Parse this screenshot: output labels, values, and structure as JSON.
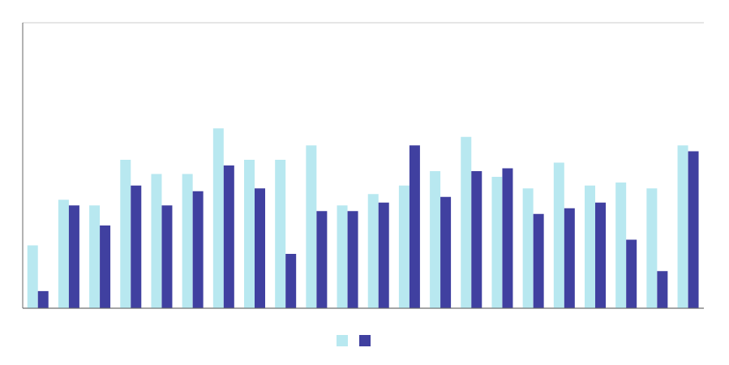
{
  "chart_data": {
    "type": "bar",
    "categories": [
      null,
      null,
      null,
      null,
      null,
      null,
      null,
      null,
      null,
      null,
      null,
      null,
      null,
      null,
      null,
      null,
      null,
      null,
      null,
      null,
      null,
      null
    ],
    "series": [
      {
        "color": "#b8e8f0",
        "values": [
          0.22,
          0.38,
          0.36,
          0.52,
          0.47,
          0.47,
          0.63,
          0.52,
          0.52,
          0.57,
          0.36,
          0.4,
          0.43,
          0.48,
          0.6,
          0.46,
          0.42,
          0.51,
          0.43,
          0.44,
          0.42,
          0.57
        ]
      },
      {
        "color": "#4040a0",
        "values": [
          0.06,
          0.36,
          0.29,
          0.43,
          0.36,
          0.41,
          0.5,
          0.42,
          0.19,
          0.34,
          0.34,
          0.37,
          0.57,
          0.39,
          0.48,
          0.49,
          0.33,
          0.35,
          0.37,
          0.24,
          0.13,
          0.55
        ]
      }
    ],
    "ylim": [
      0,
      1.0
    ],
    "yticks": [
      0.0,
      0.2,
      0.4,
      0.6,
      0.8,
      1.0
    ],
    "grid": true,
    "tick_labels": false,
    "legend": "bottom"
  }
}
